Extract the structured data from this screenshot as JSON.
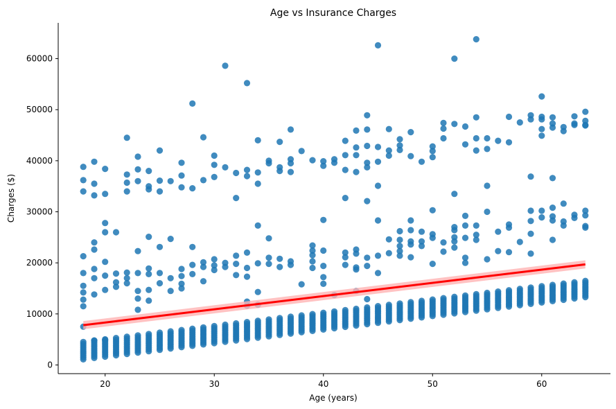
{
  "chart_data": {
    "type": "scatter",
    "title": "Age vs Insurance Charges",
    "xlabel": "Age (years)",
    "ylabel": "Charges ($)",
    "xlim": [
      15.7,
      66.3
    ],
    "ylim": [
      -1700,
      67000
    ],
    "xticks": [
      20,
      30,
      40,
      50,
      60
    ],
    "yticks": [
      0,
      10000,
      20000,
      30000,
      40000,
      50000,
      60000
    ],
    "grid": false,
    "legend": "none",
    "colors": {
      "points": "#1f77b4",
      "regression": "#ff0000",
      "ci_band": "#ffb3b3"
    },
    "regression": {
      "x": [
        18,
        64
      ],
      "y": [
        7800,
        19700
      ],
      "ci_low": [
        7000,
        18900
      ],
      "ci_high": [
        8600,
        20500
      ]
    },
    "series": [
      {
        "values": [
          [
            18,
            7500
          ],
          [
            18,
            38800
          ],
          [
            18,
            36200
          ],
          [
            18,
            34000
          ],
          [
            18,
            21300
          ],
          [
            18,
            18000
          ],
          [
            18,
            15500
          ],
          [
            18,
            14200
          ],
          [
            18,
            12800
          ],
          [
            18,
            11500
          ],
          [
            19,
            39800
          ],
          [
            19,
            35500
          ],
          [
            19,
            33200
          ],
          [
            19,
            24000
          ],
          [
            19,
            22600
          ],
          [
            19,
            18800
          ],
          [
            19,
            17000
          ],
          [
            19,
            13800
          ],
          [
            19,
            4800
          ],
          [
            20,
            38400
          ],
          [
            20,
            33500
          ],
          [
            20,
            27800
          ],
          [
            20,
            26000
          ],
          [
            20,
            20200
          ],
          [
            20,
            17500
          ],
          [
            20,
            14700
          ],
          [
            20,
            4900
          ],
          [
            21,
            26000
          ],
          [
            21,
            17900
          ],
          [
            21,
            16200
          ],
          [
            21,
            15300
          ],
          [
            22,
            44500
          ],
          [
            22,
            37300
          ],
          [
            22,
            35700
          ],
          [
            22,
            34000
          ],
          [
            22,
            18100
          ],
          [
            22,
            17000
          ],
          [
            22,
            16000
          ],
          [
            23,
            40800
          ],
          [
            23,
            38300
          ],
          [
            23,
            36000
          ],
          [
            23,
            22300
          ],
          [
            23,
            18000
          ],
          [
            23,
            14500
          ],
          [
            23,
            13000
          ],
          [
            23,
            10800
          ],
          [
            24,
            38000
          ],
          [
            24,
            35000
          ],
          [
            24,
            34400
          ],
          [
            24,
            25100
          ],
          [
            24,
            18900
          ],
          [
            24,
            17800
          ],
          [
            24,
            14700
          ],
          [
            24,
            12600
          ],
          [
            25,
            42000
          ],
          [
            25,
            36100
          ],
          [
            25,
            34000
          ],
          [
            25,
            23100
          ],
          [
            25,
            18000
          ],
          [
            25,
            16000
          ],
          [
            26,
            36000
          ],
          [
            26,
            24700
          ],
          [
            26,
            17000
          ],
          [
            26,
            14500
          ],
          [
            27,
            39600
          ],
          [
            27,
            37100
          ],
          [
            27,
            34800
          ],
          [
            27,
            18800
          ],
          [
            27,
            17400
          ],
          [
            27,
            15900
          ],
          [
            27,
            15000
          ],
          [
            28,
            51200
          ],
          [
            28,
            34600
          ],
          [
            28,
            23100
          ],
          [
            28,
            19600
          ],
          [
            28,
            17800
          ],
          [
            29,
            44600
          ],
          [
            29,
            36200
          ],
          [
            29,
            20100
          ],
          [
            29,
            19200
          ],
          [
            29,
            16400
          ],
          [
            30,
            41000
          ],
          [
            30,
            39200
          ],
          [
            30,
            36800
          ],
          [
            30,
            20700
          ],
          [
            30,
            19500
          ],
          [
            30,
            18600
          ],
          [
            31,
            58600
          ],
          [
            31,
            38700
          ],
          [
            31,
            20000
          ],
          [
            31,
            19200
          ],
          [
            32,
            37600
          ],
          [
            32,
            32700
          ],
          [
            32,
            21400
          ],
          [
            32,
            19800
          ],
          [
            32,
            17600
          ],
          [
            33,
            55200
          ],
          [
            33,
            38200
          ],
          [
            33,
            37000
          ],
          [
            33,
            22000
          ],
          [
            33,
            19000
          ],
          [
            33,
            17300
          ],
          [
            33,
            12400
          ],
          [
            33,
            11600
          ],
          [
            34,
            44000
          ],
          [
            34,
            37700
          ],
          [
            34,
            35500
          ],
          [
            34,
            27300
          ],
          [
            34,
            19900
          ],
          [
            34,
            14300
          ],
          [
            34,
            11800
          ],
          [
            35,
            40000
          ],
          [
            35,
            39500
          ],
          [
            35,
            24800
          ],
          [
            35,
            21000
          ],
          [
            35,
            19800
          ],
          [
            36,
            43700
          ],
          [
            36,
            38700
          ],
          [
            36,
            38000
          ],
          [
            36,
            20800
          ],
          [
            36,
            19200
          ],
          [
            37,
            46100
          ],
          [
            37,
            40300
          ],
          [
            37,
            39500
          ],
          [
            37,
            37800
          ],
          [
            37,
            20300
          ],
          [
            37,
            19600
          ],
          [
            38,
            41900
          ],
          [
            38,
            15800
          ],
          [
            39,
            40100
          ],
          [
            39,
            23400
          ],
          [
            39,
            22400
          ],
          [
            39,
            21500
          ],
          [
            39,
            20300
          ],
          [
            39,
            19000
          ],
          [
            40,
            39900
          ],
          [
            40,
            39000
          ],
          [
            40,
            28400
          ],
          [
            40,
            22400
          ],
          [
            40,
            19400
          ],
          [
            40,
            17200
          ],
          [
            40,
            15900
          ],
          [
            41,
            40300
          ],
          [
            41,
            39600
          ],
          [
            41,
            13700
          ],
          [
            42,
            43900
          ],
          [
            42,
            41100
          ],
          [
            42,
            38200
          ],
          [
            42,
            32700
          ],
          [
            42,
            22000
          ],
          [
            42,
            21100
          ],
          [
            42,
            19600
          ],
          [
            43,
            45900
          ],
          [
            43,
            42600
          ],
          [
            43,
            41100
          ],
          [
            43,
            37800
          ],
          [
            43,
            22600
          ],
          [
            43,
            21800
          ],
          [
            43,
            19100
          ],
          [
            43,
            18700
          ],
          [
            43,
            14500
          ],
          [
            44,
            48900
          ],
          [
            44,
            46100
          ],
          [
            44,
            42900
          ],
          [
            44,
            39600
          ],
          [
            44,
            38700
          ],
          [
            44,
            32100
          ],
          [
            44,
            21000
          ],
          [
            44,
            19400
          ],
          [
            44,
            12900
          ],
          [
            45,
            62600
          ],
          [
            45,
            42700
          ],
          [
            45,
            39800
          ],
          [
            45,
            35100
          ],
          [
            45,
            28300
          ],
          [
            45,
            21400
          ],
          [
            45,
            18000
          ],
          [
            46,
            46200
          ],
          [
            46,
            42000
          ],
          [
            46,
            41000
          ],
          [
            46,
            24600
          ],
          [
            46,
            21900
          ],
          [
            47,
            44200
          ],
          [
            47,
            43000
          ],
          [
            47,
            42100
          ],
          [
            47,
            26200
          ],
          [
            47,
            24500
          ],
          [
            47,
            23300
          ],
          [
            47,
            22300
          ],
          [
            47,
            21400
          ],
          [
            48,
            45600
          ],
          [
            48,
            40900
          ],
          [
            48,
            28300
          ],
          [
            48,
            26400
          ],
          [
            48,
            24200
          ],
          [
            48,
            23600
          ],
          [
            48,
            21100
          ],
          [
            49,
            39800
          ],
          [
            49,
            26100
          ],
          [
            49,
            24200
          ],
          [
            49,
            23300
          ],
          [
            50,
            42800
          ],
          [
            50,
            41900
          ],
          [
            50,
            40700
          ],
          [
            50,
            30300
          ],
          [
            50,
            25600
          ],
          [
            50,
            24900
          ],
          [
            50,
            19800
          ],
          [
            51,
            47400
          ],
          [
            51,
            46300
          ],
          [
            51,
            44400
          ],
          [
            51,
            24000
          ],
          [
            51,
            22200
          ],
          [
            52,
            60000
          ],
          [
            52,
            47200
          ],
          [
            52,
            33500
          ],
          [
            52,
            27000
          ],
          [
            52,
            26400
          ],
          [
            52,
            25000
          ],
          [
            52,
            24200
          ],
          [
            52,
            23000
          ],
          [
            53,
            46700
          ],
          [
            53,
            43200
          ],
          [
            53,
            29200
          ],
          [
            53,
            27300
          ],
          [
            53,
            24900
          ],
          [
            53,
            21000
          ],
          [
            53,
            20000
          ],
          [
            54,
            63800
          ],
          [
            54,
            48500
          ],
          [
            54,
            44400
          ],
          [
            54,
            42000
          ],
          [
            54,
            27300
          ],
          [
            54,
            25500
          ],
          [
            54,
            24500
          ],
          [
            55,
            44400
          ],
          [
            55,
            42300
          ],
          [
            55,
            35100
          ],
          [
            55,
            30000
          ],
          [
            55,
            20700
          ],
          [
            56,
            43900
          ],
          [
            56,
            26100
          ],
          [
            56,
            22300
          ],
          [
            57,
            48600
          ],
          [
            57,
            43600
          ],
          [
            57,
            27500
          ],
          [
            57,
            26900
          ],
          [
            57,
            22100
          ],
          [
            58,
            47500
          ],
          [
            58,
            24100
          ],
          [
            59,
            48900
          ],
          [
            59,
            48100
          ],
          [
            59,
            36900
          ],
          [
            59,
            30200
          ],
          [
            59,
            28200
          ],
          [
            59,
            25700
          ],
          [
            59,
            21800
          ],
          [
            60,
            52600
          ],
          [
            60,
            48600
          ],
          [
            60,
            48100
          ],
          [
            60,
            46200
          ],
          [
            60,
            44900
          ],
          [
            60,
            30200
          ],
          [
            60,
            28900
          ],
          [
            61,
            48500
          ],
          [
            61,
            47300
          ],
          [
            61,
            46500
          ],
          [
            61,
            36600
          ],
          [
            61,
            30800
          ],
          [
            61,
            29100
          ],
          [
            61,
            28300
          ],
          [
            61,
            24500
          ],
          [
            62,
            46600
          ],
          [
            62,
            45800
          ],
          [
            62,
            31600
          ],
          [
            62,
            28100
          ],
          [
            62,
            27300
          ],
          [
            63,
            48700
          ],
          [
            63,
            47300
          ],
          [
            63,
            47000
          ],
          [
            63,
            29400
          ],
          [
            63,
            28800
          ],
          [
            64,
            49600
          ],
          [
            64,
            47800
          ],
          [
            64,
            47000
          ],
          [
            64,
            46900
          ],
          [
            64,
            30200
          ],
          [
            64,
            29300
          ],
          [
            64,
            27200
          ],
          [
            64,
            26900
          ]
        ]
      }
    ],
    "base_band": {
      "x_min": 18,
      "x_max": 64,
      "low_start": 1100,
      "low_slope": 265,
      "high_start": 4500,
      "high_slope": 260
    }
  }
}
